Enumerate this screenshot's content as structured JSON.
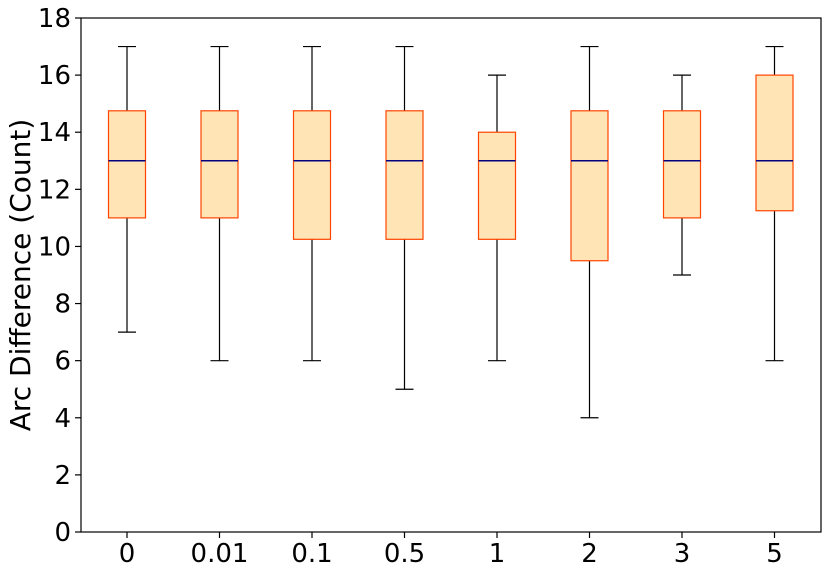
{
  "chart_data": {
    "type": "box",
    "title": "",
    "xlabel": "",
    "ylabel": "Arc Difference (Count)",
    "ylim": [
      0,
      18
    ],
    "yticks": [
      0,
      2,
      4,
      6,
      8,
      10,
      12,
      14,
      16,
      18
    ],
    "grid": false,
    "categories": [
      "0",
      "0.01",
      "0.1",
      "0.5",
      "1",
      "2",
      "3",
      "5"
    ],
    "boxes": [
      {
        "whisker_low": 7,
        "q1": 11,
        "median": 13,
        "q3": 14.75,
        "whisker_high": 17
      },
      {
        "whisker_low": 6,
        "q1": 11,
        "median": 13,
        "q3": 14.75,
        "whisker_high": 17
      },
      {
        "whisker_low": 6,
        "q1": 10.25,
        "median": 13,
        "q3": 14.75,
        "whisker_high": 17
      },
      {
        "whisker_low": 5,
        "q1": 10.25,
        "median": 13,
        "q3": 14.75,
        "whisker_high": 17
      },
      {
        "whisker_low": 6,
        "q1": 10.25,
        "median": 13,
        "q3": 14,
        "whisker_high": 16
      },
      {
        "whisker_low": 4,
        "q1": 9.5,
        "median": 13,
        "q3": 14.75,
        "whisker_high": 17
      },
      {
        "whisker_low": 9,
        "q1": 11,
        "median": 13,
        "q3": 14.75,
        "whisker_high": 16
      },
      {
        "whisker_low": 6,
        "q1": 11.25,
        "median": 13,
        "q3": 16,
        "whisker_high": 17
      }
    ],
    "colors": {
      "box_fill": "#ffe4b5",
      "box_edge": "#ff4500",
      "median": "#000080",
      "whisker": "#000000"
    }
  }
}
